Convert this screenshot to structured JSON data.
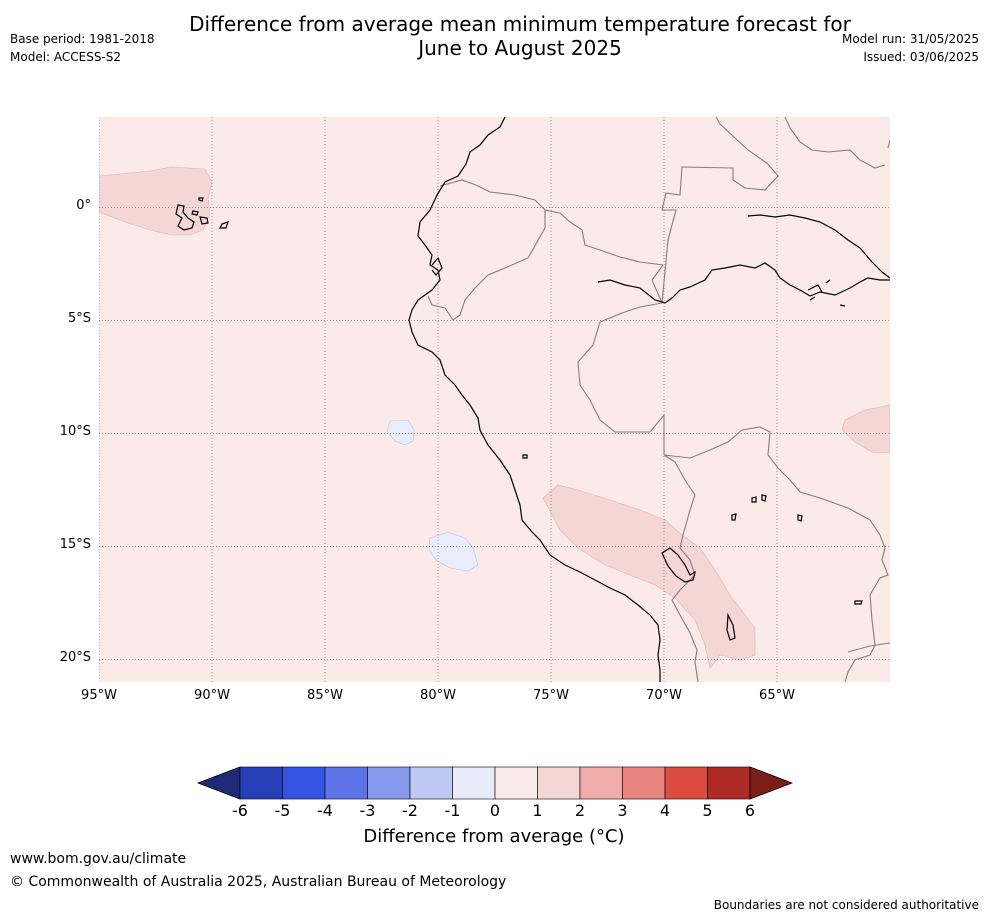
{
  "header": {
    "title_line1": "Difference from average mean minimum temperature forecast for",
    "title_line2": "June to August 2025",
    "base_period": "Base period: 1981-2018",
    "model": "Model: ACCESS-S2",
    "model_run": "Model run: 31/05/2025",
    "issued": "Issued: 03/06/2025"
  },
  "map": {
    "lon_range": [
      -95,
      -60
    ],
    "lat_range": [
      -21,
      4
    ],
    "lon_ticks": [
      {
        "value": -95,
        "label": "95°W"
      },
      {
        "value": -90,
        "label": "90°W"
      },
      {
        "value": -85,
        "label": "85°W"
      },
      {
        "value": -80,
        "label": "80°W"
      },
      {
        "value": -75,
        "label": "75°W"
      },
      {
        "value": -70,
        "label": "70°W"
      },
      {
        "value": -65,
        "label": "65°W"
      }
    ],
    "lat_ticks": [
      {
        "value": 0,
        "label": "0°"
      },
      {
        "value": -5,
        "label": "5°S"
      },
      {
        "value": -10,
        "label": "10°S"
      },
      {
        "value": -15,
        "label": "15°S"
      },
      {
        "value": -20,
        "label": "20°S"
      }
    ],
    "background_class": "0 to 1",
    "background_color": "#fbeae8",
    "anomaly_patches": [
      {
        "name": "Galapagos warm patch",
        "class": "1 to 2",
        "color": "#f4d6d4"
      },
      {
        "name": "Southern Peru / Bolivia warm patch",
        "class": "1 to 2",
        "color": "#f4d6d4"
      },
      {
        "name": "Western Brazil warm patch",
        "class": "1 to 2",
        "color": "#f4d6d4"
      },
      {
        "name": "Offshore cool patch near 10S",
        "class": "-1 to 0",
        "color": "#e8ecfb"
      },
      {
        "name": "Offshore cool patch near 15S",
        "class": "-1 to 0",
        "color": "#e8ecfb"
      }
    ]
  },
  "colorbar": {
    "title": "Difference from average (°C)",
    "labels": [
      "-6",
      "-5",
      "-4",
      "-3",
      "-2",
      "-1",
      "0",
      "1",
      "2",
      "3",
      "4",
      "5",
      "6"
    ],
    "under_color": "#1f2b7a",
    "over_color": "#7b1e18",
    "colors": [
      "#263fb6",
      "#3552e3",
      "#5c74e8",
      "#8699ec",
      "#c0c8f5",
      "#e8ebfa",
      "#fbeae8",
      "#f4d6d4",
      "#efaca8",
      "#e8857e",
      "#dc4b3f",
      "#ad2b24"
    ]
  },
  "footer": {
    "url": "www.bom.gov.au/climate",
    "copyright": "© Commonwealth of Australia 2025, Australian Bureau of Meteorology",
    "note": "Boundaries are not considered authoritative"
  }
}
